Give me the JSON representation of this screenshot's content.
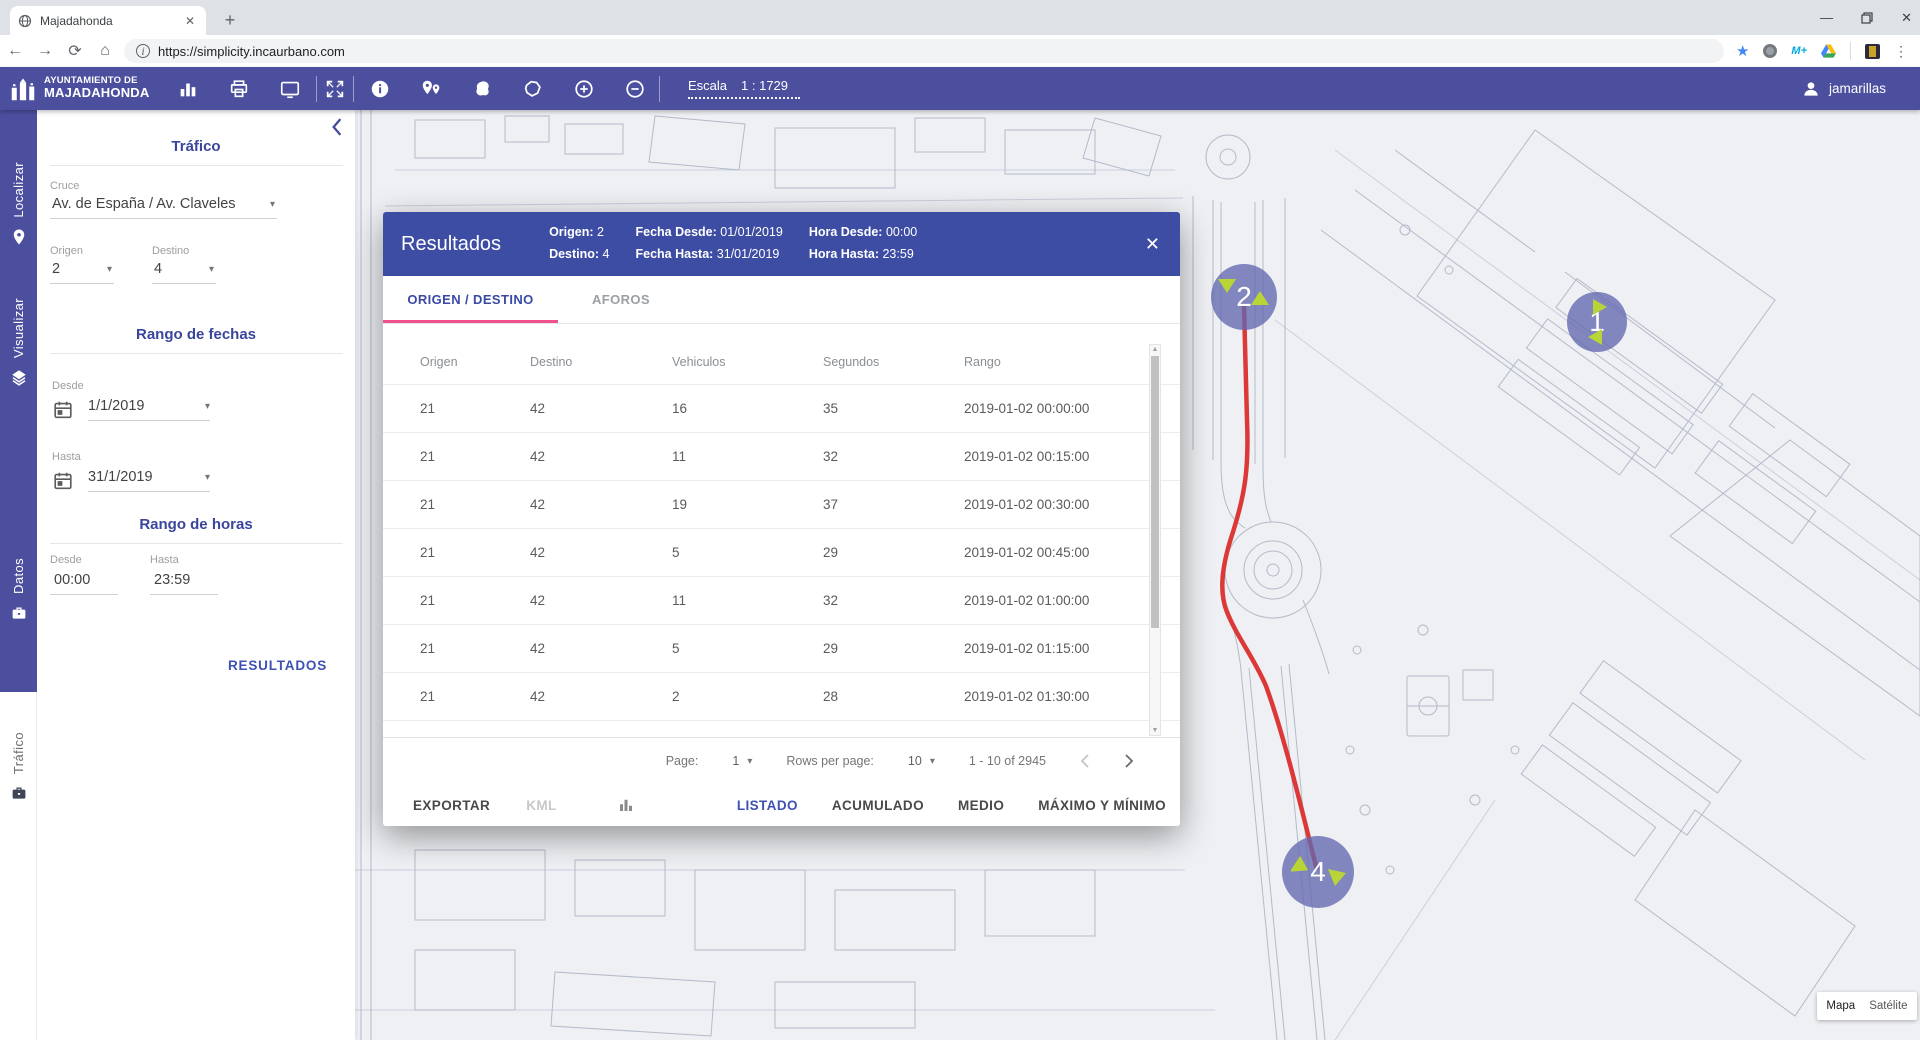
{
  "browser": {
    "tab_title": "Majadahonda",
    "url": "https://simplicity.incaurbano.com",
    "extensions": {
      "m_plus": "M+"
    }
  },
  "toolbar": {
    "logo_line1": "AYUNTAMIENTO DE",
    "logo_line2": "MAJADAHONDA",
    "escala_label": "Escala",
    "escala_value": "1 : 1729",
    "user_name": "jamarillas",
    "icons": [
      "bar-chart",
      "printer",
      "monitor",
      "fullscreen",
      "info",
      "map-pins",
      "paint",
      "area",
      "zoom-in",
      "zoom-out"
    ]
  },
  "sidebar": {
    "tabs": [
      {
        "label": "Localizar",
        "icon": "pin",
        "active": false
      },
      {
        "label": "Visualizar",
        "icon": "layers",
        "active": false
      },
      {
        "label": "Datos",
        "icon": "briefcase",
        "active": false
      },
      {
        "label": "Tráfico",
        "icon": "briefcase",
        "active": true
      }
    ]
  },
  "filters": {
    "title": "Tráfico",
    "cruce_label": "Cruce",
    "cruce_value": "Av. de España / Av. Claveles",
    "origen_label": "Origen",
    "origen_value": "2",
    "destino_label": "Destino",
    "destino_value": "4",
    "fechas_title": "Rango de fechas",
    "fecha_desde_label": "Desde",
    "fecha_desde_value": "1/1/2019",
    "fecha_hasta_label": "Hasta",
    "fecha_hasta_value": "31/1/2019",
    "horas_title": "Rango de horas",
    "hora_desde_label": "Desde",
    "hora_desde_value": "00:00",
    "hora_hasta_label": "Hasta",
    "hora_hasta_value": "23:59",
    "results_button": "RESULTADOS"
  },
  "modal": {
    "title": "Resultados",
    "header_info": [
      {
        "label": "Origen:",
        "value": "2"
      },
      {
        "label": "Destino:",
        "value": "4"
      },
      {
        "label": "Fecha Desde:",
        "value": "01/01/2019"
      },
      {
        "label": "Fecha Hasta:",
        "value": "31/01/2019"
      },
      {
        "label": "Hora Desde:",
        "value": "00:00"
      },
      {
        "label": "Hora Hasta:",
        "value": "23:59"
      }
    ],
    "tabs": [
      {
        "label": "ORIGEN / DESTINO",
        "active": true
      },
      {
        "label": "AFOROS",
        "active": false
      }
    ],
    "table": {
      "headers": [
        "Origen",
        "Destino",
        "Vehiculos",
        "Segundos",
        "Rango"
      ],
      "rows": [
        [
          "21",
          "42",
          "16",
          "35",
          "2019-01-02 00:00:00"
        ],
        [
          "21",
          "42",
          "11",
          "32",
          "2019-01-02 00:15:00"
        ],
        [
          "21",
          "42",
          "19",
          "37",
          "2019-01-02 00:30:00"
        ],
        [
          "21",
          "42",
          "5",
          "29",
          "2019-01-02 00:45:00"
        ],
        [
          "21",
          "42",
          "11",
          "32",
          "2019-01-02 01:00:00"
        ],
        [
          "21",
          "42",
          "5",
          "29",
          "2019-01-02 01:15:00"
        ],
        [
          "21",
          "42",
          "2",
          "28",
          "2019-01-02 01:30:00"
        ]
      ]
    },
    "pagination": {
      "page_label": "Page:",
      "page_value": "1",
      "rows_label": "Rows per page:",
      "rows_value": "10",
      "range_text": "1 - 10 of 2945"
    },
    "footer": {
      "exportar": "EXPORTAR",
      "kml": "KML",
      "listado": "LISTADO",
      "acumulado": "ACUMULADO",
      "medio": "MEDIO",
      "maximo": "MÁXIMO Y MÍNIMO"
    }
  },
  "map": {
    "markers": [
      {
        "label": "2"
      },
      {
        "label": "1"
      },
      {
        "label": "4"
      }
    ],
    "controls": {
      "map_label": "Mapa",
      "satellite_label": "Satélite"
    }
  },
  "colors": {
    "primary": "#4b4f9e",
    "modal_header": "#3e4da4",
    "accent_pink": "#f0538c",
    "link_blue": "#3f51b5",
    "route_red": "#dd3838",
    "marker_green": "#b9d437",
    "marker_fill": "rgba(99,104,175,0.78)"
  }
}
